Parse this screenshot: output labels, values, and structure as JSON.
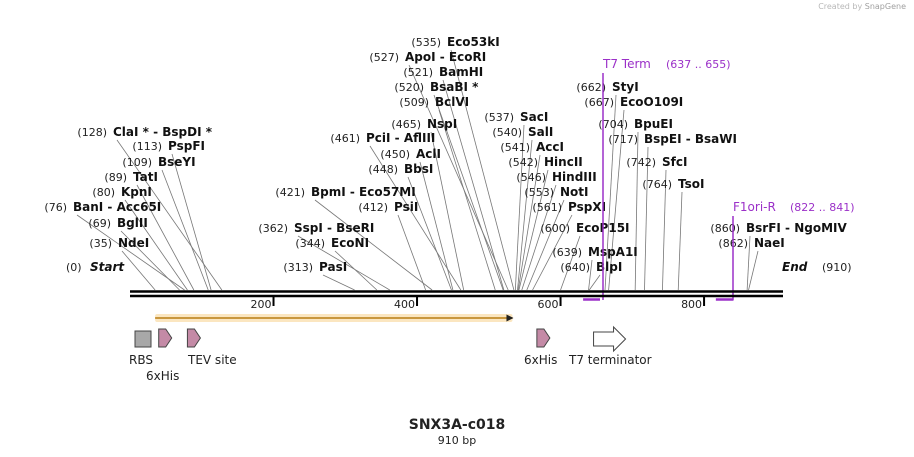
{
  "credit": {
    "prefix": "Created by",
    "brand": "SnapGene"
  },
  "map": {
    "name": "SNX3A-c018",
    "length_label": "910 bp",
    "length": 910,
    "start_label": "Start",
    "start_pos": "(0)",
    "end_label": "End",
    "end_pos": "(910)",
    "ruler_ticks": [
      {
        "pos": 200,
        "label": "200"
      },
      {
        "pos": 400,
        "label": "400"
      },
      {
        "pos": 600,
        "label": "600"
      },
      {
        "pos": 800,
        "label": "800"
      }
    ]
  },
  "sites": [
    {
      "id": "ndei",
      "site": 35,
      "pos": "(35)",
      "name": "NdeI"
    },
    {
      "id": "bglii",
      "site": 69,
      "pos": "(69)",
      "name": "BglII"
    },
    {
      "id": "bani",
      "site": 76,
      "pos": "(76)",
      "name": "BanI  - Acc65I"
    },
    {
      "id": "kpni",
      "site": 80,
      "pos": "(80)",
      "name": "KpnI"
    },
    {
      "id": "tati",
      "site": 89,
      "pos": "(89)",
      "name": "TatI"
    },
    {
      "id": "bseyi",
      "site": 109,
      "pos": "(109)",
      "name": "BseYI"
    },
    {
      "id": "pspfi",
      "site": 113,
      "pos": "(113)",
      "name": "PspFI"
    },
    {
      "id": "clai",
      "site": 128,
      "pos": "(128)",
      "name": "ClaI * - BspDI *"
    },
    {
      "id": "pasi",
      "site": 313,
      "pos": "(313)",
      "name": "PasI"
    },
    {
      "id": "econi",
      "site": 344,
      "pos": "(344)",
      "name": "EcoNI"
    },
    {
      "id": "sspi",
      "site": 362,
      "pos": "(362)",
      "name": "SspI  - BseRI"
    },
    {
      "id": "psii",
      "site": 412,
      "pos": "(412)",
      "name": "PsiI"
    },
    {
      "id": "bpmi",
      "site": 421,
      "pos": "(421)",
      "name": "BpmI  - Eco57MI"
    },
    {
      "id": "bbsi",
      "site": 448,
      "pos": "(448)",
      "name": "BbsI"
    },
    {
      "id": "acli",
      "site": 450,
      "pos": "(450)",
      "name": "AclI"
    },
    {
      "id": "pcii",
      "site": 461,
      "pos": "(461)",
      "name": "PciI  - AflIII"
    },
    {
      "id": "nspi",
      "site": 465,
      "pos": "(465)",
      "name": "NspI"
    },
    {
      "id": "bclvi",
      "site": 509,
      "pos": "(509)",
      "name": "BclVI"
    },
    {
      "id": "bsabi",
      "site": 520,
      "pos": "(520)",
      "name": "BsaBI *"
    },
    {
      "id": "bamhi",
      "site": 521,
      "pos": "(521)",
      "name": "BamHI"
    },
    {
      "id": "apoi",
      "site": 527,
      "pos": "(527)",
      "name": "ApoI  - EcoRI"
    },
    {
      "id": "eco53ki",
      "site": 535,
      "pos": "(535)",
      "name": "Eco53kI"
    },
    {
      "id": "saci",
      "site": 537,
      "pos": "(537)",
      "name": "SacI"
    },
    {
      "id": "sali",
      "site": 540,
      "pos": "(540)",
      "name": "SalI"
    },
    {
      "id": "acci",
      "site": 541,
      "pos": "(541)",
      "name": "AccI"
    },
    {
      "id": "hincii",
      "site": 542,
      "pos": "(542)",
      "name": "HincII"
    },
    {
      "id": "hindiii",
      "site": 546,
      "pos": "(546)",
      "name": "HindIII"
    },
    {
      "id": "noti",
      "site": 553,
      "pos": "(553)",
      "name": "NotI"
    },
    {
      "id": "pspxi",
      "site": 561,
      "pos": "(561)",
      "name": "PspXI"
    },
    {
      "id": "ecop15i",
      "site": 600,
      "pos": "(600)",
      "name": "EcoP15I"
    },
    {
      "id": "mspa1i",
      "site": 639,
      "pos": "(639)",
      "name": "MspA1I"
    },
    {
      "id": "blpi",
      "site": 640,
      "pos": "(640)",
      "name": "BlpI"
    },
    {
      "id": "styi",
      "site": 662,
      "pos": "(662)",
      "name": "StyI"
    },
    {
      "id": "ecoo109i",
      "site": 667,
      "pos": "(667)",
      "name": "EcoO109I"
    },
    {
      "id": "bpuei",
      "site": 704,
      "pos": "(704)",
      "name": "BpuEI"
    },
    {
      "id": "bspei",
      "site": 717,
      "pos": "(717)",
      "name": "BspEI  - BsaWI"
    },
    {
      "id": "sfci",
      "site": 742,
      "pos": "(742)",
      "name": "SfcI"
    },
    {
      "id": "tsoi",
      "site": 764,
      "pos": "(764)",
      "name": "TsoI"
    },
    {
      "id": "bsrfi",
      "site": 860,
      "pos": "(860)",
      "name": "BsrFI  - NgoMIV"
    },
    {
      "id": "naei",
      "site": 862,
      "pos": "(862)",
      "name": "NaeI"
    }
  ],
  "primers": [
    {
      "id": "t7term",
      "name": "T7 Term",
      "range": "(637 .. 655)",
      "start": 637,
      "end": 655,
      "color": "#9b30c8"
    },
    {
      "id": "f1ori",
      "name": "F1ori-R",
      "range": "(822 .. 841)",
      "start": 822,
      "end": 841,
      "color": "#9b30c8"
    }
  ],
  "features": [
    {
      "id": "orf",
      "type": "orf",
      "start": 35,
      "end": 533,
      "color": "#e8b86a"
    },
    {
      "id": "rbs",
      "type": "rbs",
      "label": "RBS",
      "start": 15,
      "end": 30,
      "color": "#a8a8a8"
    },
    {
      "id": "his1",
      "type": "tag",
      "label": "6xHis",
      "start": 40,
      "end": 58,
      "color": "#c48aa6"
    },
    {
      "id": "tev",
      "type": "site",
      "label": "TEV site",
      "start": 80,
      "end": 100,
      "color": "#c48aa6"
    },
    {
      "id": "his2",
      "type": "tag",
      "label": "6xHis",
      "start": 567,
      "end": 585,
      "color": "#c48aa6"
    },
    {
      "id": "t7t",
      "type": "terminator",
      "label": "T7 terminator",
      "start": 646,
      "end": 692,
      "color": "#ffffff"
    }
  ]
}
